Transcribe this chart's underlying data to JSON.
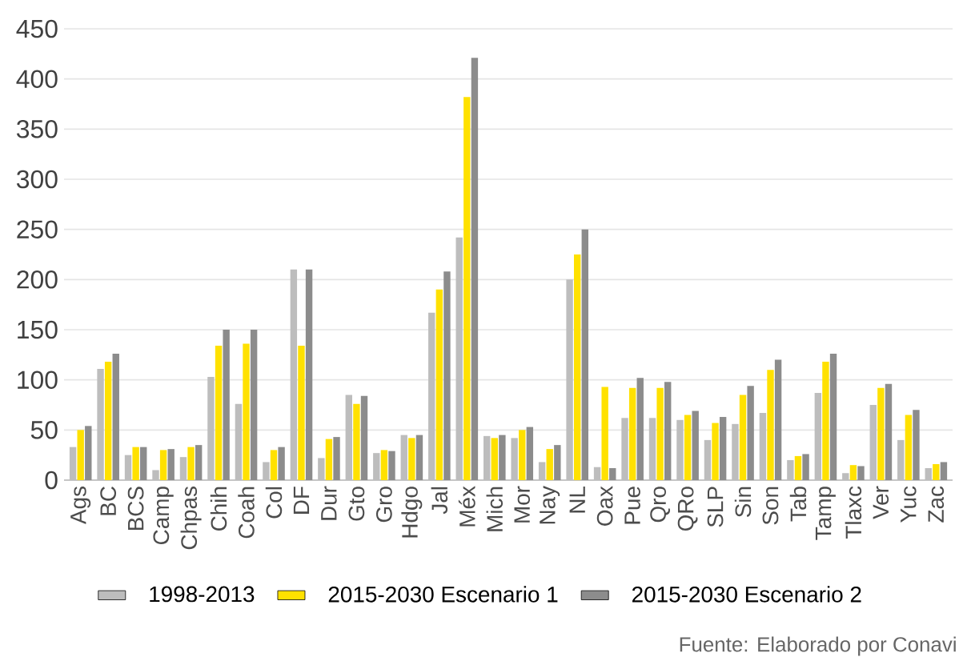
{
  "chart_data": {
    "type": "bar",
    "categories": [
      "Ags",
      "BC",
      "BCS",
      "Camp",
      "Chpas",
      "Chih",
      "Coah",
      "Col",
      "DF",
      "Dur",
      "Gto",
      "Gro",
      "Hdgo",
      "Jal",
      "Méx",
      "Mich",
      "Mor",
      "Nay",
      "NL",
      "Oax",
      "Pue",
      "Qro",
      "QRo",
      "SLP",
      "Sin",
      "Son",
      "Tab",
      "Tamp",
      "Tlaxc",
      "Ver",
      "Yuc",
      "Zac"
    ],
    "series": [
      {
        "name": "1998-2013",
        "color": "#bdbdbd",
        "values": [
          33,
          111,
          25,
          10,
          23,
          103,
          76,
          18,
          210,
          22,
          85,
          27,
          45,
          167,
          242,
          44,
          42,
          18,
          200,
          13,
          62,
          62,
          60,
          40,
          56,
          67,
          20,
          87,
          7,
          75,
          40,
          12
        ]
      },
      {
        "name": "2015-2030 Escenario 1",
        "color": "#ffe100",
        "values": [
          50,
          118,
          33,
          30,
          33,
          134,
          136,
          30,
          134,
          41,
          76,
          30,
          42,
          190,
          382,
          42,
          50,
          31,
          225,
          93,
          92,
          92,
          65,
          57,
          85,
          110,
          24,
          118,
          15,
          92,
          65,
          16
        ]
      },
      {
        "name": "2015-2030 Escenario 2",
        "color": "#8c8c8c",
        "values": [
          54,
          126,
          33,
          31,
          35,
          150,
          150,
          33,
          210,
          43,
          84,
          29,
          45,
          208,
          421,
          45,
          53,
          35,
          250,
          12,
          102,
          98,
          69,
          63,
          94,
          120,
          26,
          126,
          14,
          96,
          70,
          18
        ]
      }
    ],
    "ylim": [
      0,
      450
    ],
    "yticks": [
      0,
      50,
      100,
      150,
      200,
      250,
      300,
      350,
      400,
      450
    ],
    "grid": "y",
    "legend": "bottom",
    "annotations": [
      "Fuente: Elaborado por Conavi"
    ]
  }
}
